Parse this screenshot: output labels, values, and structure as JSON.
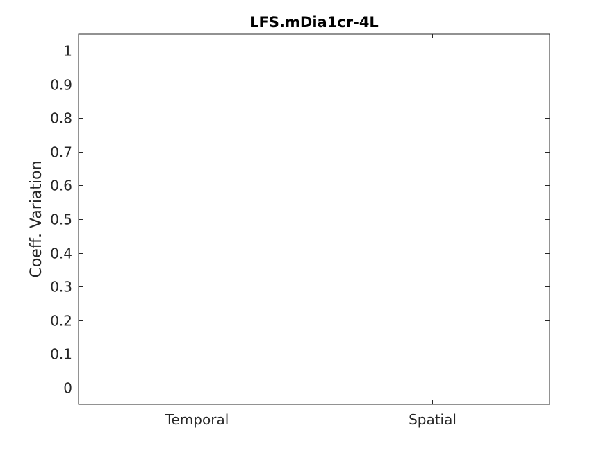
{
  "chart_data": {
    "type": "bar",
    "title": "LFS.mDia1cr-4L",
    "xlabel": "",
    "ylabel": "Coeff. Variation",
    "categories": [
      "Temporal",
      "Spatial"
    ],
    "series": [],
    "ylim": [
      -0.05,
      1.05
    ],
    "yticks": [
      0,
      0.1,
      0.2,
      0.3,
      0.4,
      0.5,
      0.6,
      0.7,
      0.8,
      0.9,
      1
    ],
    "ytick_labels": [
      "0",
      "0.1",
      "0.2",
      "0.3",
      "0.4",
      "0.5",
      "0.6",
      "0.7",
      "0.8",
      "0.9",
      "1"
    ],
    "xlim": [
      0.5,
      2.5
    ],
    "grid": false,
    "legend": "none",
    "colors": {
      "axis": "#262626",
      "background": "#ffffff"
    }
  }
}
